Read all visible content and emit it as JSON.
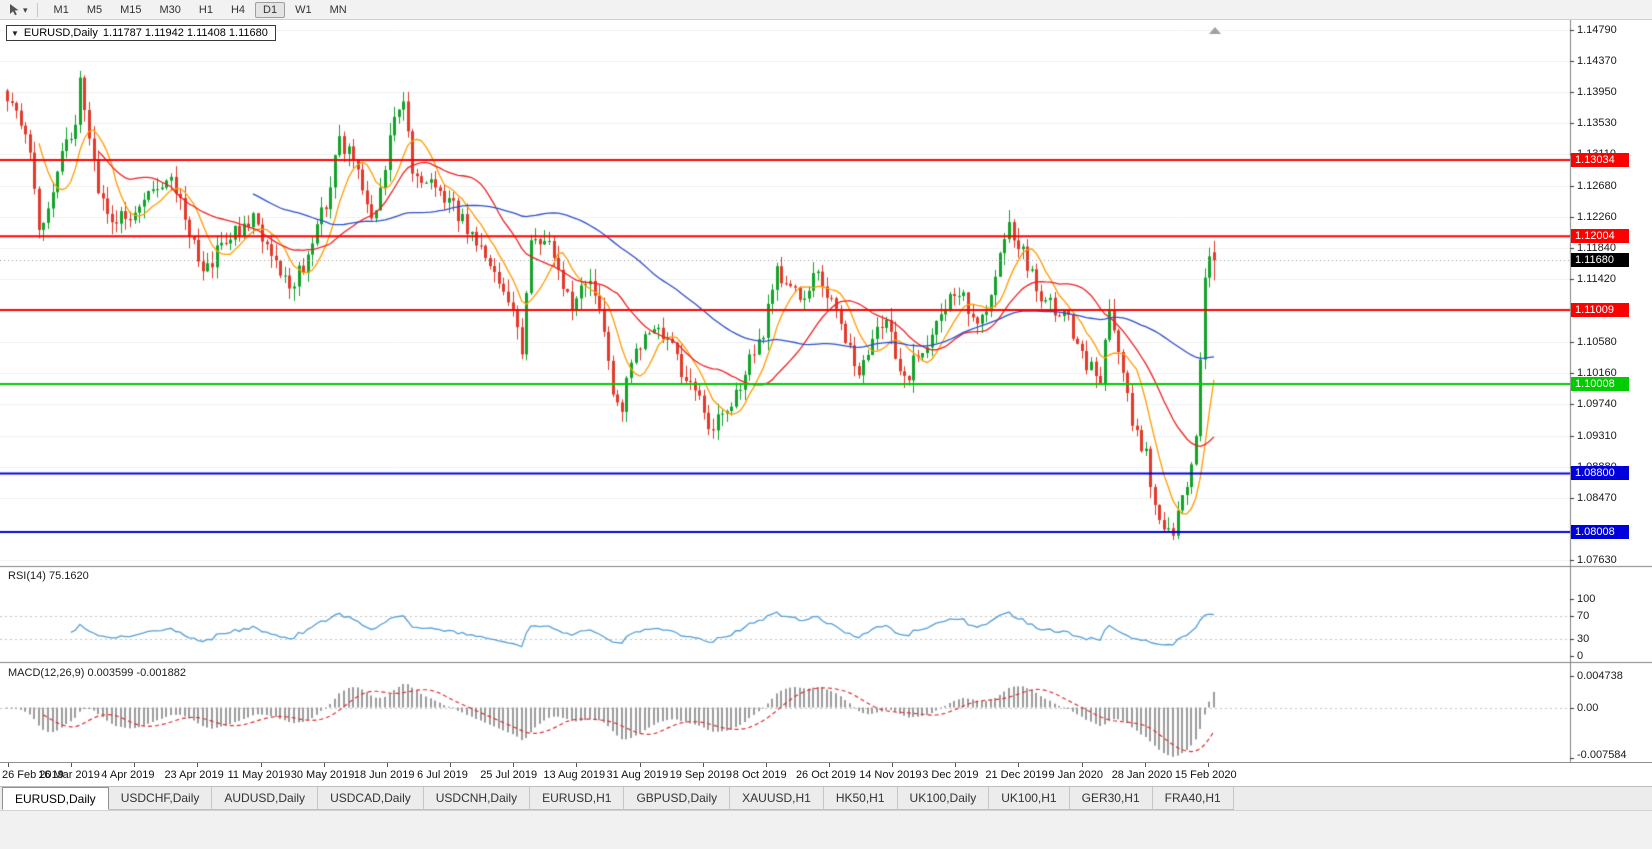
{
  "toolbar": {
    "timeframes": [
      "M1",
      "M5",
      "M15",
      "M30",
      "H1",
      "H4",
      "D1",
      "W1",
      "MN"
    ],
    "active_timeframe": "D1"
  },
  "icons": {
    "collapse_triangle": "▼",
    "tool_caret": "▾"
  },
  "chart": {
    "symbol_title": "EURUSD,Daily",
    "ohlc_text": "1.11787 1.11942 1.11408 1.11680"
  },
  "chart_data": {
    "type": "candlestick",
    "symbol": "EURUSD",
    "timeframe": "Daily",
    "title": "EURUSD,Daily",
    "current_ohlc": {
      "open": 1.11787,
      "high": 1.11942,
      "low": 1.11408,
      "close": 1.1168
    },
    "y_range": [
      1.0763,
      1.1479
    ],
    "y_axis_ticks": [
      "1.14790",
      "1.14370",
      "1.13950",
      "1.13530",
      "1.13110",
      "1.12680",
      "1.12260",
      "1.11840",
      "1.11420",
      "1.10580",
      "1.10160",
      "1.09740",
      "1.09310",
      "1.08880",
      "1.08470",
      "1.07630"
    ],
    "x_labels": [
      "26 Feb 2019",
      "16 Mar 2019",
      "4 Apr 2019",
      "23 Apr 2019",
      "11 May 2019",
      "30 May 2019",
      "18 Jun 2019",
      "6 Jul 2019",
      "25 Jul 2019",
      "13 Aug 2019",
      "31 Aug 2019",
      "19 Sep 2019",
      "8 Oct 2019",
      "26 Oct 2019",
      "14 Nov 2019",
      "3 Dec 2019",
      "21 Dec 2019",
      "9 Jan 2020",
      "28 Jan 2020",
      "15 Feb 2020"
    ],
    "candle_count": 266,
    "seed": 9,
    "up_color": "#12a32a",
    "down_color": "#e2392b",
    "price_waypoints": [
      [
        0,
        1.139
      ],
      [
        3,
        1.1345
      ],
      [
        5,
        1.131
      ],
      [
        7,
        1.12
      ],
      [
        9,
        1.1245
      ],
      [
        12,
        1.132
      ],
      [
        15,
        1.135
      ],
      [
        16,
        1.1412
      ],
      [
        18,
        1.133
      ],
      [
        20,
        1.127
      ],
      [
        22,
        1.1225
      ],
      [
        26,
        1.1228
      ],
      [
        30,
        1.1245
      ],
      [
        34,
        1.1278
      ],
      [
        36,
        1.1288
      ],
      [
        40,
        1.12
      ],
      [
        43,
        1.1155
      ],
      [
        46,
        1.1178
      ],
      [
        50,
        1.1205
      ],
      [
        54,
        1.1222
      ],
      [
        58,
        1.118
      ],
      [
        62,
        1.1132
      ],
      [
        66,
        1.1172
      ],
      [
        70,
        1.1248
      ],
      [
        73,
        1.133
      ],
      [
        76,
        1.1308
      ],
      [
        80,
        1.1215
      ],
      [
        83,
        1.1285
      ],
      [
        85,
        1.1365
      ],
      [
        87,
        1.1388
      ],
      [
        89,
        1.129
      ],
      [
        93,
        1.1272
      ],
      [
        96,
        1.1252
      ],
      [
        100,
        1.1222
      ],
      [
        104,
        1.1188
      ],
      [
        107,
        1.1142
      ],
      [
        110,
        1.1122
      ],
      [
        112,
        1.108
      ],
      [
        113,
        1.1045
      ],
      [
        115,
        1.1195
      ],
      [
        118,
        1.1192
      ],
      [
        120,
        1.1172
      ],
      [
        124,
        1.1108
      ],
      [
        128,
        1.1148
      ],
      [
        131,
        1.1062
      ],
      [
        133,
        1.0992
      ],
      [
        135,
        1.0968
      ],
      [
        137,
        1.1028
      ],
      [
        140,
        1.1058
      ],
      [
        143,
        1.1072
      ],
      [
        146,
        1.1062
      ],
      [
        148,
        1.1018
      ],
      [
        151,
        1.0992
      ],
      [
        153,
        1.0962
      ],
      [
        155,
        1.0932
      ],
      [
        157,
        1.0968
      ],
      [
        160,
        1.0982
      ],
      [
        163,
        1.1042
      ],
      [
        166,
        1.1072
      ],
      [
        169,
        1.1148
      ],
      [
        172,
        1.1132
      ],
      [
        175,
        1.1112
      ],
      [
        177,
        1.1152
      ],
      [
        180,
        1.1128
      ],
      [
        183,
        1.1072
      ],
      [
        185,
        1.1042
      ],
      [
        187,
        1.1022
      ],
      [
        190,
        1.1062
      ],
      [
        193,
        1.1082
      ],
      [
        196,
        1.1022
      ],
      [
        198,
        1.1015
      ],
      [
        201,
        1.1052
      ],
      [
        204,
        1.1082
      ],
      [
        207,
        1.1128
      ],
      [
        210,
        1.1115
      ],
      [
        213,
        1.1088
      ],
      [
        216,
        1.1122
      ],
      [
        218,
        1.1172
      ],
      [
        220,
        1.1208
      ],
      [
        222,
        1.1192
      ],
      [
        224,
        1.1162
      ],
      [
        227,
        1.1122
      ],
      [
        230,
        1.1102
      ],
      [
        233,
        1.1088
      ],
      [
        237,
        1.1028
      ],
      [
        240,
        1.1008
      ],
      [
        242,
        1.1092
      ],
      [
        244,
        1.1052
      ],
      [
        247,
        1.0948
      ],
      [
        250,
        1.0908
      ],
      [
        252,
        1.0832
      ],
      [
        254,
        1.0808
      ],
      [
        256,
        1.0792
      ],
      [
        258,
        1.0855
      ],
      [
        260,
        1.0882
      ],
      [
        261,
        1.0942
      ],
      [
        262,
        1.1028
      ],
      [
        263,
        1.1138
      ],
      [
        264,
        1.1172
      ],
      [
        265,
        1.1168
      ]
    ],
    "horizontal_levels": [
      {
        "label": "1.13034",
        "value": 1.13034,
        "color": "#ff0000"
      },
      {
        "label": "1.12004",
        "value": 1.12004,
        "color": "#ff0000"
      },
      {
        "label": "1.11009",
        "value": 1.11009,
        "color": "#ff0000"
      },
      {
        "label": "1.10008",
        "value": 1.10008,
        "color": "#00cc00"
      },
      {
        "label": "1.08800",
        "value": 1.088,
        "color": "#0000dd"
      },
      {
        "label": "1.08008",
        "value": 1.08008,
        "color": "#0000dd"
      }
    ],
    "current_price_tag": {
      "label": "1.11680",
      "value": 1.1168,
      "bg": "#000000"
    },
    "overlays": [
      {
        "name": "fast-ma",
        "period": 8,
        "color": "#ff9c00"
      },
      {
        "name": "medium-ma",
        "period": 21,
        "color": "#ee2222"
      },
      {
        "name": "slow-ma",
        "period": 55,
        "color": "#2e4fc8"
      }
    ]
  },
  "indicators": {
    "rsi": {
      "label": "RSI(14) 75.1620",
      "period": 14,
      "current_value": "75.1620",
      "line_color": "#569fd6",
      "levels": [
        70,
        30
      ],
      "axis_labels": [
        "100",
        "70",
        "30",
        "0"
      ]
    },
    "macd": {
      "label": "MACD(12,26,9) 0.003599 -0.001882",
      "params": "12,26,9",
      "macd_value": "0.003599",
      "signal_value": "-0.001882",
      "histogram_color": "#9c9c9c",
      "signal_color": "#e03030",
      "axis_labels": [
        "0.004738",
        "0.00",
        "-0.007584"
      ],
      "scale_max": 0.004738,
      "scale_min": -0.007584
    }
  },
  "tabbar": {
    "tabs": [
      "EURUSD,Daily",
      "USDCHF,Daily",
      "AUDUSD,Daily",
      "USDCAD,Daily",
      "USDCNH,Daily",
      "EURUSD,H1",
      "GBPUSD,Daily",
      "XAUUSD,H1",
      "HK50,H1",
      "UK100,Daily",
      "UK100,H1",
      "GER30,H1",
      "FRA40,H1"
    ],
    "active": "EURUSD,Daily"
  }
}
